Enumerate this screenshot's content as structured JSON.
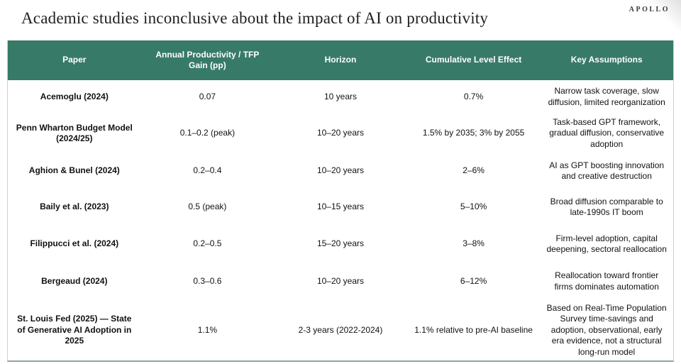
{
  "brand": "APOLLO",
  "title": "Academic studies inconclusive about the impact of AI on productivity",
  "colors": {
    "header_bg": "#387A68",
    "header_text": "#FFFFFF",
    "body_text": "#111111",
    "table_side_border": "#C9D3D1",
    "table_bottom_border": "#93A5A0"
  },
  "table": {
    "columns": [
      "Paper",
      "Annual Productivity / TFP Gain (pp)",
      "Horizon",
      "Cumulative Level Effect",
      "Key Assumptions"
    ],
    "rows": [
      {
        "paper": "Acemoglu (2024)",
        "gain": "0.07",
        "horizon": "10 years",
        "effect": "0.7%",
        "assumptions": "Narrow task coverage, slow diffusion, limited reorganization"
      },
      {
        "paper": "Penn Wharton Budget Model (2024/25)",
        "gain": "0.1–0.2 (peak)",
        "horizon": "10–20 years",
        "effect": "1.5% by 2035; 3% by 2055",
        "assumptions": "Task-based GPT framework, gradual diffusion, conservative adoption"
      },
      {
        "paper": "Aghion & Bunel (2024)",
        "gain": "0.2–0.4",
        "horizon": "10–20 years",
        "effect": "2–6%",
        "assumptions": "AI as GPT boosting innovation and creative destruction"
      },
      {
        "paper": "Baily et al. (2023)",
        "gain": "0.5 (peak)",
        "horizon": "10–15 years",
        "effect": "5–10%",
        "assumptions": "Broad diffusion comparable to late-1990s IT boom"
      },
      {
        "paper": "Filippucci et al. (2024)",
        "gain": "0.2–0.5",
        "horizon": "15–20 years",
        "effect": "3–8%",
        "assumptions": "Firm-level adoption, capital deepening, sectoral reallocation"
      },
      {
        "paper": "Bergeaud (2024)",
        "gain": "0.3–0.6",
        "horizon": "10–20 years",
        "effect": "6–12%",
        "assumptions": "Reallocation toward frontier firms dominates automation"
      },
      {
        "paper": "St. Louis Fed (2025) — State of Generative AI Adoption in 2025",
        "gain": "1.1%",
        "horizon": "2-3 years (2022-2024)",
        "effect": "1.1% relative to pre-AI baseline",
        "assumptions": "Based on Real-Time Population Survey time-savings and adoption, observational, early era evidence, not a structural long-run model"
      }
    ]
  },
  "chart_data": {
    "type": "table",
    "title": "Academic studies inconclusive about the impact of AI on productivity",
    "columns": [
      "Paper",
      "Annual Productivity / TFP Gain (pp)",
      "Horizon",
      "Cumulative Level Effect",
      "Key Assumptions"
    ],
    "rows": [
      [
        "Acemoglu (2024)",
        "0.07",
        "10 years",
        "0.7%",
        "Narrow task coverage, slow diffusion, limited reorganization"
      ],
      [
        "Penn Wharton Budget Model (2024/25)",
        "0.1–0.2 (peak)",
        "10–20 years",
        "1.5% by 2035; 3% by 2055",
        "Task-based GPT framework, gradual diffusion, conservative adoption"
      ],
      [
        "Aghion & Bunel (2024)",
        "0.2–0.4",
        "10–20 years",
        "2–6%",
        "AI as GPT boosting innovation and creative destruction"
      ],
      [
        "Baily et al. (2023)",
        "0.5 (peak)",
        "10–15 years",
        "5–10%",
        "Broad diffusion comparable to late-1990s IT boom"
      ],
      [
        "Filippucci et al. (2024)",
        "0.2–0.5",
        "15–20 years",
        "3–8%",
        "Firm-level adoption, capital deepening, sectoral reallocation"
      ],
      [
        "Bergeaud (2024)",
        "0.3–0.6",
        "10–20 years",
        "6–12%",
        "Reallocation toward frontier firms dominates automation"
      ],
      [
        "St. Louis Fed (2025) — State of Generative AI Adoption in 2025",
        "1.1%",
        "2-3 years (2022-2024)",
        "1.1% relative to pre-AI baseline",
        "Based on Real-Time Population Survey time-savings and adoption, observational, early era evidence, not a structural long-run model"
      ]
    ]
  }
}
